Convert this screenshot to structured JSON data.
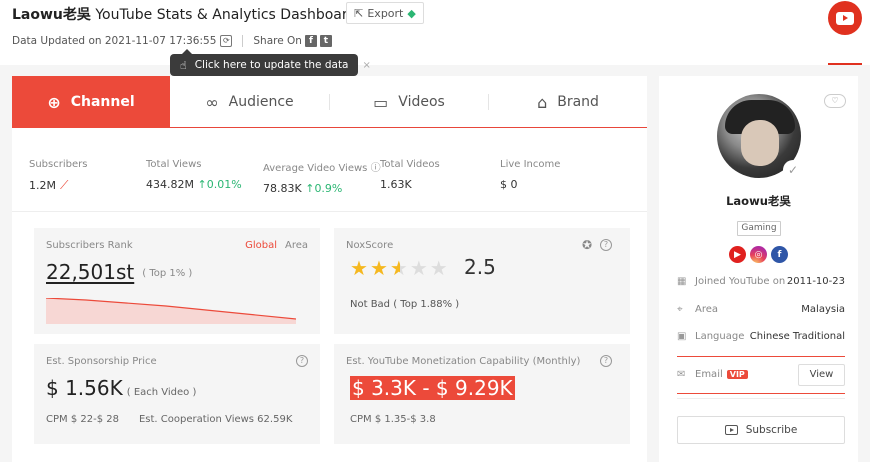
{
  "header": {
    "title_channel": "Laowu老吳",
    "title_rest": "YouTube Stats & Analytics Dashboard",
    "export_label": "Export",
    "data_updated": "Data Updated on 2021-11-07 17:36:55",
    "share_on": "Share On"
  },
  "tooltip": {
    "text": "Click here to update the data",
    "close": "×"
  },
  "tabs": [
    {
      "label": "Channel",
      "active": true
    },
    {
      "label": "Audience"
    },
    {
      "label": "Videos"
    },
    {
      "label": "Brand"
    }
  ],
  "stats": {
    "subscribers": {
      "label": "Subscribers",
      "value": "1.2M"
    },
    "total_views": {
      "label": "Total Views",
      "value": "434.82M",
      "change": "0.01%"
    },
    "avg_views": {
      "label": "Average Video Views",
      "value": "78.83K",
      "change": "0.9%"
    },
    "total_videos": {
      "label": "Total Videos",
      "value": "1.63K"
    },
    "live_income": {
      "label": "Live Income",
      "value": "$ 0"
    }
  },
  "rank": {
    "label": "Subscribers Rank",
    "tab_global": "Global",
    "tab_area": "Area",
    "value": "22,501st",
    "top": "( Top 1% )"
  },
  "nox": {
    "label": "NoxScore",
    "score": "2.5",
    "stars_filled": 2.5,
    "stars_total": 5,
    "desc": "Not Bad ( Top 1.88% )"
  },
  "sponsorship": {
    "label": "Est. Sponsorship Price",
    "value": "$ 1.56K",
    "unit": "( Each Video )",
    "cpm": "CPM  $ 22-$ 28",
    "coop": "Est. Cooperation Views  62.59K"
  },
  "monetization": {
    "label": "Est. YouTube Monetization Capability (Monthly)",
    "value": "$ 3.3K - $ 9.29K",
    "cpm": "CPM  $ 1.35-$ 3.8"
  },
  "profile": {
    "name": "Laowu老吳",
    "category": "Gaming",
    "joined_label": "Joined YouTube on",
    "joined_value": "2011-10-23",
    "area_label": "Area",
    "area_value": "Malaysia",
    "language_label": "Language",
    "language_value": "Chinese Traditional",
    "email_label": "Email",
    "vip": "VIP",
    "view_label": "View",
    "subscribe_label": "Subscribe"
  },
  "colors": {
    "accent": "#ec4a3a",
    "positive": "#2bb673",
    "star": "#f5b81f"
  }
}
